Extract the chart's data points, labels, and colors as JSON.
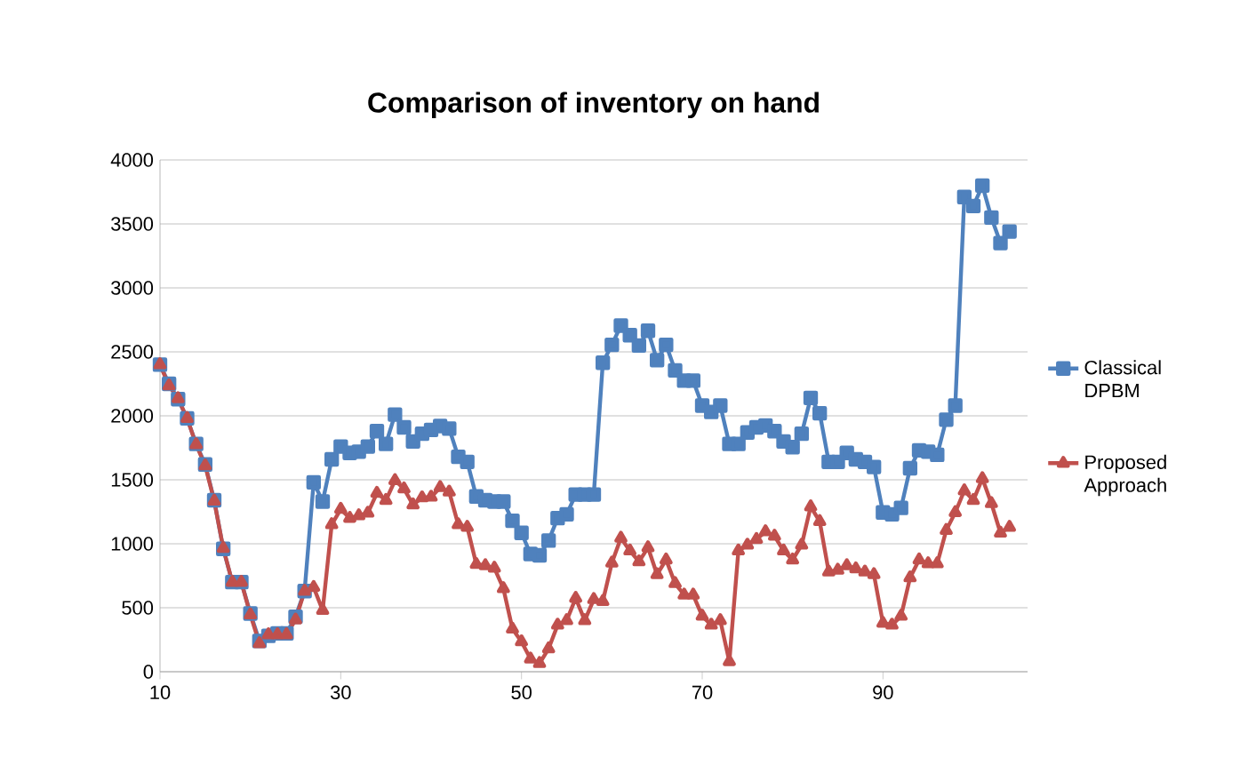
{
  "chart_data": {
    "type": "line",
    "title": "Comparison of inventory on hand",
    "x": [
      10,
      11,
      12,
      13,
      14,
      15,
      16,
      17,
      18,
      19,
      20,
      21,
      22,
      23,
      24,
      25,
      26,
      27,
      28,
      29,
      30,
      31,
      32,
      33,
      34,
      35,
      36,
      37,
      38,
      39,
      40,
      41,
      42,
      43,
      44,
      45,
      46,
      47,
      48,
      49,
      50,
      51,
      52,
      53,
      54,
      55,
      56,
      57,
      58,
      59,
      60,
      61,
      62,
      63,
      64,
      65,
      66,
      67,
      68,
      69,
      70,
      71,
      72,
      73,
      74,
      75,
      76,
      77,
      78,
      79,
      80,
      81,
      82,
      83,
      84,
      85,
      86,
      87,
      88,
      89,
      90,
      91,
      92,
      93,
      94,
      95,
      96,
      97,
      98,
      99,
      100,
      101,
      102,
      103,
      104
    ],
    "series": [
      {
        "name": "Classical DPBM",
        "color": "#4f81bd",
        "marker": "square",
        "values": [
          2400,
          2250,
          2130,
          1980,
          1780,
          1620,
          1340,
          960,
          700,
          700,
          455,
          240,
          280,
          300,
          300,
          430,
          630,
          1480,
          1330,
          1660,
          1760,
          1710,
          1720,
          1760,
          1880,
          1780,
          2010,
          1910,
          1800,
          1860,
          1890,
          1920,
          1900,
          1680,
          1640,
          1370,
          1340,
          1330,
          1330,
          1180,
          1085,
          920,
          910,
          1025,
          1200,
          1230,
          1385,
          1385,
          1385,
          2415,
          2555,
          2705,
          2630,
          2550,
          2665,
          2435,
          2555,
          2355,
          2275,
          2275,
          2080,
          2030,
          2080,
          1780,
          1780,
          1870,
          1910,
          1925,
          1880,
          1800,
          1755,
          1860,
          2140,
          2020,
          1640,
          1640,
          1710,
          1660,
          1640,
          1600,
          1245,
          1230,
          1280,
          1590,
          1730,
          1720,
          1695,
          1970,
          2080,
          3710,
          3640,
          3800,
          3550,
          3350,
          3440
        ]
      },
      {
        "name": "Proposed Approach",
        "color": "#c0504d",
        "marker": "triangle",
        "values": [
          2400,
          2235,
          2135,
          1980,
          1775,
          1610,
          1335,
          965,
          700,
          700,
          445,
          220,
          290,
          290,
          290,
          405,
          630,
          660,
          480,
          1150,
          1270,
          1200,
          1220,
          1240,
          1395,
          1340,
          1495,
          1430,
          1305,
          1360,
          1365,
          1440,
          1405,
          1150,
          1130,
          840,
          830,
          810,
          650,
          335,
          235,
          100,
          65,
          180,
          365,
          400,
          575,
          400,
          565,
          550,
          850,
          1045,
          945,
          860,
          970,
          760,
          875,
          690,
          600,
          600,
          435,
          365,
          400,
          80,
          945,
          990,
          1035,
          1095,
          1060,
          945,
          875,
          990,
          1290,
          1175,
          780,
          795,
          830,
          805,
          780,
          760,
          380,
          365,
          435,
          735,
          875,
          845,
          845,
          1105,
          1245,
          1415,
          1340,
          1510,
          1315,
          1085,
          1130
        ]
      }
    ],
    "xlim": [
      10,
      106
    ],
    "xticks": [
      10,
      30,
      50,
      70,
      90
    ],
    "ylim": [
      0,
      4000
    ],
    "yticks": [
      0,
      500,
      1000,
      1500,
      2000,
      2500,
      3000,
      3500,
      4000
    ],
    "grid": "y",
    "legend": "right"
  }
}
